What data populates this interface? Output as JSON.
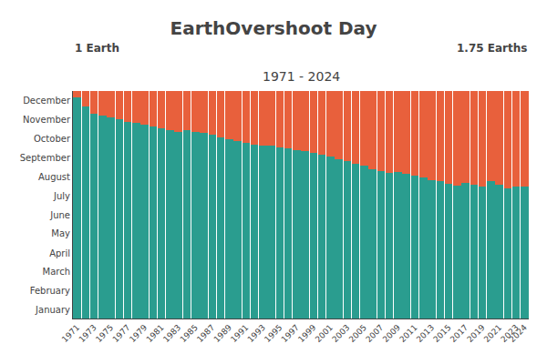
{
  "chart_data": {
    "type": "bar",
    "stacked": true,
    "title": "EarthOvershoot Day",
    "subtitle": "1971 - 2024",
    "annotations": [
      "1 Earth",
      "1.75 Earths"
    ],
    "categories": [
      "1971",
      null,
      "1973",
      null,
      "1975",
      null,
      "1977",
      null,
      "1979",
      null,
      "1981",
      null,
      "1983",
      null,
      "1985",
      null,
      "1987",
      null,
      "1989",
      null,
      "1991",
      null,
      "1993",
      null,
      "1995",
      null,
      "1997",
      null,
      "1999",
      null,
      "2001",
      null,
      "2003",
      null,
      "2005",
      null,
      "2007",
      null,
      "2009",
      null,
      "2011",
      null,
      "2013",
      null,
      "2015",
      null,
      "2017",
      null,
      "2019",
      null,
      "2021",
      null,
      "2023",
      "2024"
    ],
    "series": [
      {
        "color": "#2a9d8f",
        "values": [
          355,
          340,
          328,
          325,
          322,
          320,
          316,
          314,
          311,
          308,
          305,
          302,
          300,
          302,
          300,
          298,
          295,
          290,
          287,
          285,
          282,
          279,
          278,
          277,
          275,
          273,
          270,
          268,
          266,
          263,
          260,
          256,
          252,
          248,
          245,
          240,
          236,
          233,
          235,
          232,
          229,
          226,
          222,
          220,
          216,
          213,
          217,
          214,
          212,
          221,
          214,
          209,
          212,
          211
        ]
      },
      {
        "color": "#e8603c",
        "values": [
          10,
          25,
          37,
          40,
          43,
          45,
          49,
          51,
          54,
          57,
          60,
          63,
          65,
          63,
          65,
          67,
          70,
          75,
          78,
          80,
          83,
          86,
          87,
          88,
          90,
          92,
          95,
          97,
          99,
          102,
          105,
          109,
          113,
          117,
          120,
          125,
          129,
          132,
          130,
          133,
          136,
          139,
          143,
          145,
          149,
          152,
          148,
          151,
          153,
          144,
          151,
          156,
          153,
          154
        ]
      }
    ],
    "ylim": [
      0,
      365
    ],
    "yticks": [
      {
        "value": 349,
        "label": "December"
      },
      {
        "value": 319,
        "label": "November"
      },
      {
        "value": 288,
        "label": "October"
      },
      {
        "value": 258,
        "label": "September"
      },
      {
        "value": 227,
        "label": "August"
      },
      {
        "value": 197,
        "label": "July"
      },
      {
        "value": 166,
        "label": "June"
      },
      {
        "value": 136,
        "label": "May"
      },
      {
        "value": 105,
        "label": "April"
      },
      {
        "value": 75,
        "label": "March"
      },
      {
        "value": 44,
        "label": "February"
      },
      {
        "value": 14,
        "label": "January"
      }
    ],
    "grid": false
  }
}
